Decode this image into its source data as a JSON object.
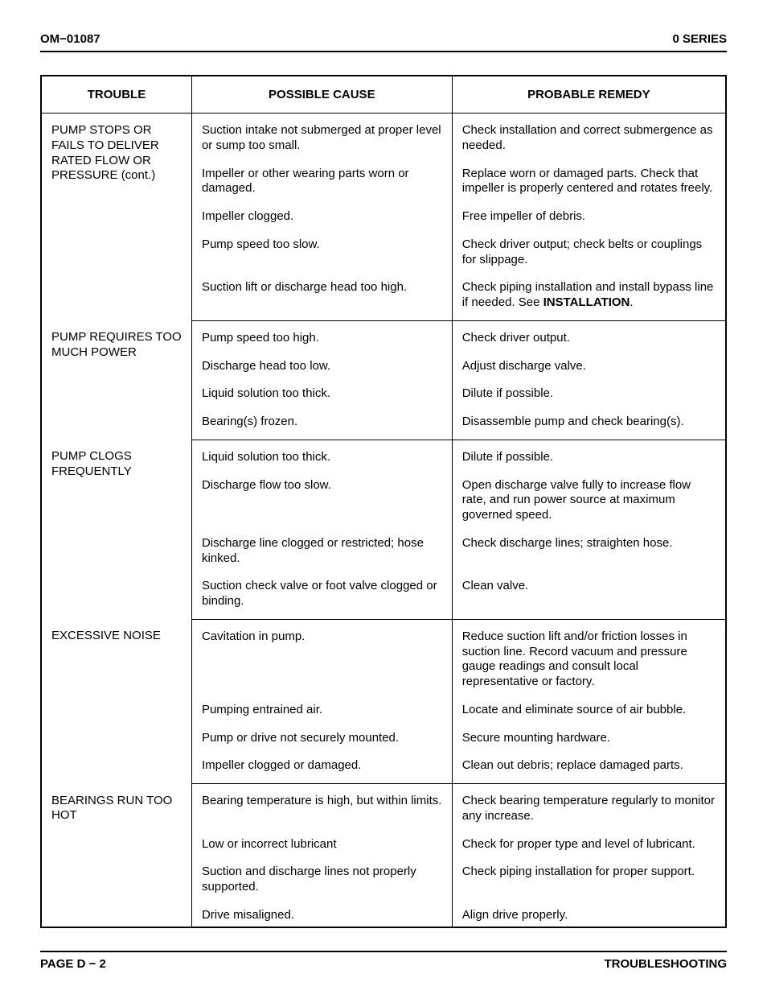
{
  "header": {
    "left": "OM−01087",
    "right": "0 SERIES"
  },
  "footer": {
    "left": "PAGE D − 2",
    "right": "TROUBLESHOOTING"
  },
  "table": {
    "columns": [
      "TROUBLE",
      "POSSIBLE CAUSE",
      "PROBABLE REMEDY"
    ],
    "col_widths_pct": [
      22,
      38,
      40
    ],
    "border_color": "#000000",
    "background_color": "#ffffff",
    "font_size_pt": 11,
    "header_fontweight": "bold",
    "groups": [
      {
        "trouble": "PUMP STOPS OR FAILS TO DELIVER RATED FLOW OR PRESSURE (cont.)",
        "rows": [
          {
            "cause": "Suction intake not submerged at proper level or sump too small.",
            "remedy": "Check installation and correct submergence as needed."
          },
          {
            "cause": "Impeller or other wearing parts worn or damaged.",
            "remedy": "Replace worn or damaged parts. Check that impeller is properly centered and rotates freely."
          },
          {
            "cause": "Impeller clogged.",
            "remedy": "Free impeller of debris."
          },
          {
            "cause": "Pump speed too slow.",
            "remedy": "Check driver output; check belts or couplings for slippage."
          },
          {
            "cause": "Suction lift or discharge head too high.",
            "remedy_html": "Check piping installation and install bypass line if needed. See <b>INSTALLATION</b>."
          }
        ]
      },
      {
        "trouble": "PUMP REQUIRES TOO MUCH POWER",
        "rows": [
          {
            "cause": "Pump speed too high.",
            "remedy": "Check driver output."
          },
          {
            "cause": "Discharge head too low.",
            "remedy": "Adjust discharge valve."
          },
          {
            "cause": "Liquid solution too thick.",
            "remedy": "Dilute if possible."
          },
          {
            "cause": "Bearing(s) frozen.",
            "remedy": "Disassemble pump and check bearing(s)."
          }
        ]
      },
      {
        "trouble": "PUMP CLOGS FREQUENTLY",
        "rows": [
          {
            "cause": "Liquid solution too thick.",
            "remedy": "Dilute if possible."
          },
          {
            "cause": "Discharge flow too slow.",
            "remedy": "Open discharge valve fully to in­crease flow rate, and run power source at maximum governed speed."
          },
          {
            "cause": "Discharge line clogged or restricted; hose kinked.",
            "remedy": "Check discharge lines; straighten hose."
          },
          {
            "cause": "Suction check valve or foot valve clogged or binding.",
            "remedy": "Clean valve."
          }
        ]
      },
      {
        "trouble": "EXCESSIVE NOISE",
        "rows": [
          {
            "cause": "Cavitation in pump.",
            "remedy": "Reduce suction lift and/or friction losses in suction line. Record vacuum and pressure gauge readings and consult local representative or factory."
          },
          {
            "cause": "Pumping entrained air.",
            "remedy": "Locate and eliminate source of air bubble."
          },
          {
            "cause": "Pump or drive not securely mounted.",
            "remedy": "Secure mounting hardware."
          },
          {
            "cause": "Impeller clogged or damaged.",
            "remedy": "Clean out debris; replace damaged parts."
          }
        ]
      },
      {
        "trouble": "BEARINGS RUN TOO HOT",
        "rows": [
          {
            "cause": "Bearing temperature is high, but within limits.",
            "remedy": "Check bearing temperature regu­larly to monitor any increase."
          },
          {
            "cause": "Low or incorrect lubricant",
            "remedy": "Check for proper type and level of lubricant."
          },
          {
            "cause": "Suction and discharge lines not properly supported.",
            "remedy": "Check piping installation for proper support."
          },
          {
            "cause": "Drive misaligned.",
            "remedy": "Align drive properly."
          }
        ]
      }
    ]
  }
}
